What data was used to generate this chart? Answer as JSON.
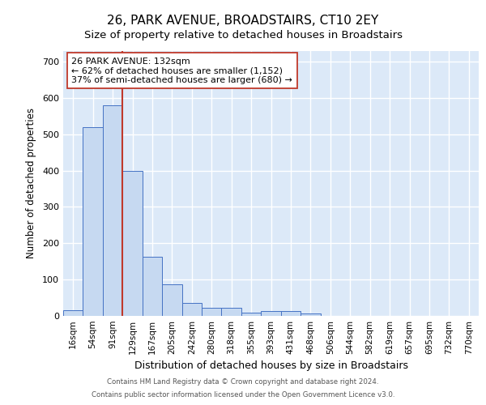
{
  "title1": "26, PARK AVENUE, BROADSTAIRS, CT10 2EY",
  "title2": "Size of property relative to detached houses in Broadstairs",
  "xlabel": "Distribution of detached houses by size in Broadstairs",
  "ylabel": "Number of detached properties",
  "bar_labels": [
    "16sqm",
    "54sqm",
    "91sqm",
    "129sqm",
    "167sqm",
    "205sqm",
    "242sqm",
    "280sqm",
    "318sqm",
    "355sqm",
    "393sqm",
    "431sqm",
    "468sqm",
    "506sqm",
    "544sqm",
    "582sqm",
    "619sqm",
    "657sqm",
    "695sqm",
    "732sqm",
    "770sqm"
  ],
  "bar_values": [
    15,
    520,
    580,
    400,
    163,
    88,
    35,
    22,
    22,
    8,
    13,
    13,
    6,
    0,
    0,
    0,
    0,
    0,
    0,
    0,
    0
  ],
  "bar_color": "#c6d9f1",
  "bar_edge_color": "#4472c4",
  "red_line_index": 3,
  "red_line_color": "#c0392b",
  "annotation_line1": "26 PARK AVENUE: 132sqm",
  "annotation_line2": "← 62% of detached houses are smaller (1,152)",
  "annotation_line3": "37% of semi-detached houses are larger (680) →",
  "annotation_box_facecolor": "white",
  "annotation_box_edgecolor": "#c0392b",
  "ylim": [
    0,
    730
  ],
  "yticks": [
    0,
    100,
    200,
    300,
    400,
    500,
    600,
    700
  ],
  "footer1": "Contains HM Land Registry data © Crown copyright and database right 2024.",
  "footer2": "Contains public sector information licensed under the Open Government Licence v3.0.",
  "bg_color": "#dce9f8",
  "fig_bg_color": "#ffffff",
  "grid_color": "#ffffff",
  "title1_fontsize": 11,
  "title2_fontsize": 9.5,
  "xlabel_fontsize": 9,
  "ylabel_fontsize": 8.5,
  "tick_fontsize": 7.5,
  "footer_fontsize": 6.2,
  "ann_fontsize": 8
}
